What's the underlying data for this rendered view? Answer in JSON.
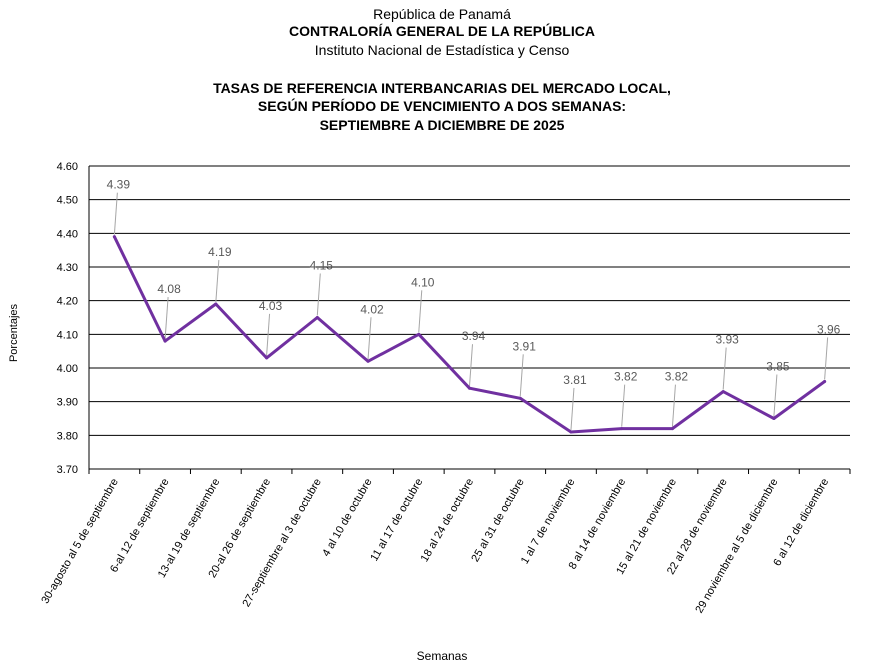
{
  "header": {
    "line1": "República de Panamá",
    "line2": "CONTRALORÍA GENERAL DE LA REPÚBLICA",
    "line3": "Instituto  Nacional de Estadística  y  Censo"
  },
  "colors": {
    "line": "#7030A0",
    "grid": "#000000",
    "label_text": "#595959",
    "leader": "#A6A6A6"
  },
  "chart_data": {
    "type": "line",
    "title": [
      "TASAS DE REFERENCIA INTERBANCARIAS DEL MERCADO LOCAL,",
      "SEGÚN PERÍODO DE VENCIMIENTO A DOS SEMANAS:",
      "SEPTIEMBRE A DICIEMBRE DE 2025"
    ],
    "xlabel": "Semanas",
    "ylabel": "Porcentajes",
    "ylim": [
      3.7,
      4.6
    ],
    "yticks": [
      "3.70",
      "3.80",
      "3.90",
      "4.00",
      "4.10",
      "4.20",
      "4.30",
      "4.40",
      "4.50",
      "4.60"
    ],
    "grid": true,
    "categories": [
      "30-agosto al 5 de septiembre",
      "6-al 12 de septiembre",
      "13-al 19 de septiembre",
      "20-al 26 de septiembre",
      "27-septiembre al 3 de octubre",
      "4 al 10 de octubre",
      "11 al 17 de octubre",
      "18 al 24 de octubre",
      "25 al 31 de octubre",
      "1 al 7 de noviembre",
      "8 al 14 de noviembre",
      "15 al 21 de noviembre",
      "22 al 28 de noviembre",
      "29 noviembre al 5 de diciembre",
      "6 al 12 de diciembre"
    ],
    "values": [
      4.39,
      4.08,
      4.19,
      4.03,
      4.15,
      4.02,
      4.1,
      3.94,
      3.91,
      3.81,
      3.82,
      3.82,
      3.93,
      3.85,
      3.96
    ],
    "data_labels": [
      "4.39",
      "4.08",
      "4.19",
      "4.03",
      "4.15",
      "4.02",
      "4.10",
      "3.94",
      "3.91",
      "3.81",
      "3.82",
      "3.82",
      "3.93",
      "3.85",
      "3.96"
    ]
  }
}
